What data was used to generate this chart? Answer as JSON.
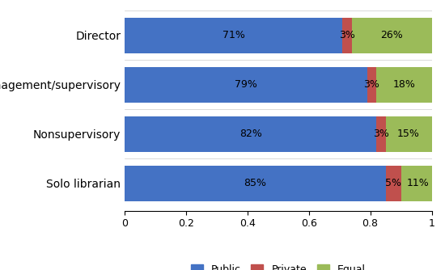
{
  "categories": [
    "Solo librarian",
    "Nonsupervisory",
    "Management/supervisory",
    "Director"
  ],
  "public": [
    0.85,
    0.82,
    0.79,
    0.71
  ],
  "private": [
    0.05,
    0.03,
    0.03,
    0.03
  ],
  "equal": [
    0.11,
    0.15,
    0.18,
    0.26
  ],
  "public_labels": [
    "85%",
    "82%",
    "79%",
    "71%"
  ],
  "private_labels": [
    "5%",
    "3%",
    "3%",
    "3%"
  ],
  "equal_labels": [
    "11%",
    "15%",
    "18%",
    "26%"
  ],
  "public_color": "#4472C4",
  "private_color": "#C0504D",
  "equal_color": "#9BBB59",
  "xlim": [
    0,
    1.0
  ],
  "xticks": [
    0,
    0.2,
    0.4,
    0.6,
    0.8,
    1.0
  ],
  "xtick_labels": [
    "0",
    "0.2",
    "0.4",
    "0.6",
    "0.8",
    "1"
  ],
  "legend_labels": [
    "Public",
    "Private",
    "Equal"
  ],
  "background_color": "#FFFFFF",
  "bar_height": 0.72,
  "label_fontsize": 9,
  "tick_fontsize": 9,
  "category_fontsize": 10
}
